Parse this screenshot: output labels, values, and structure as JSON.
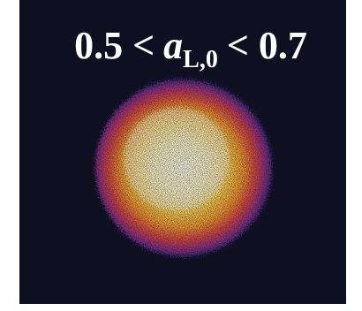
{
  "title": {
    "left": "0.5 <",
    "variable": "a",
    "subscript": "L,0",
    "right": "< 0.7"
  }
}
